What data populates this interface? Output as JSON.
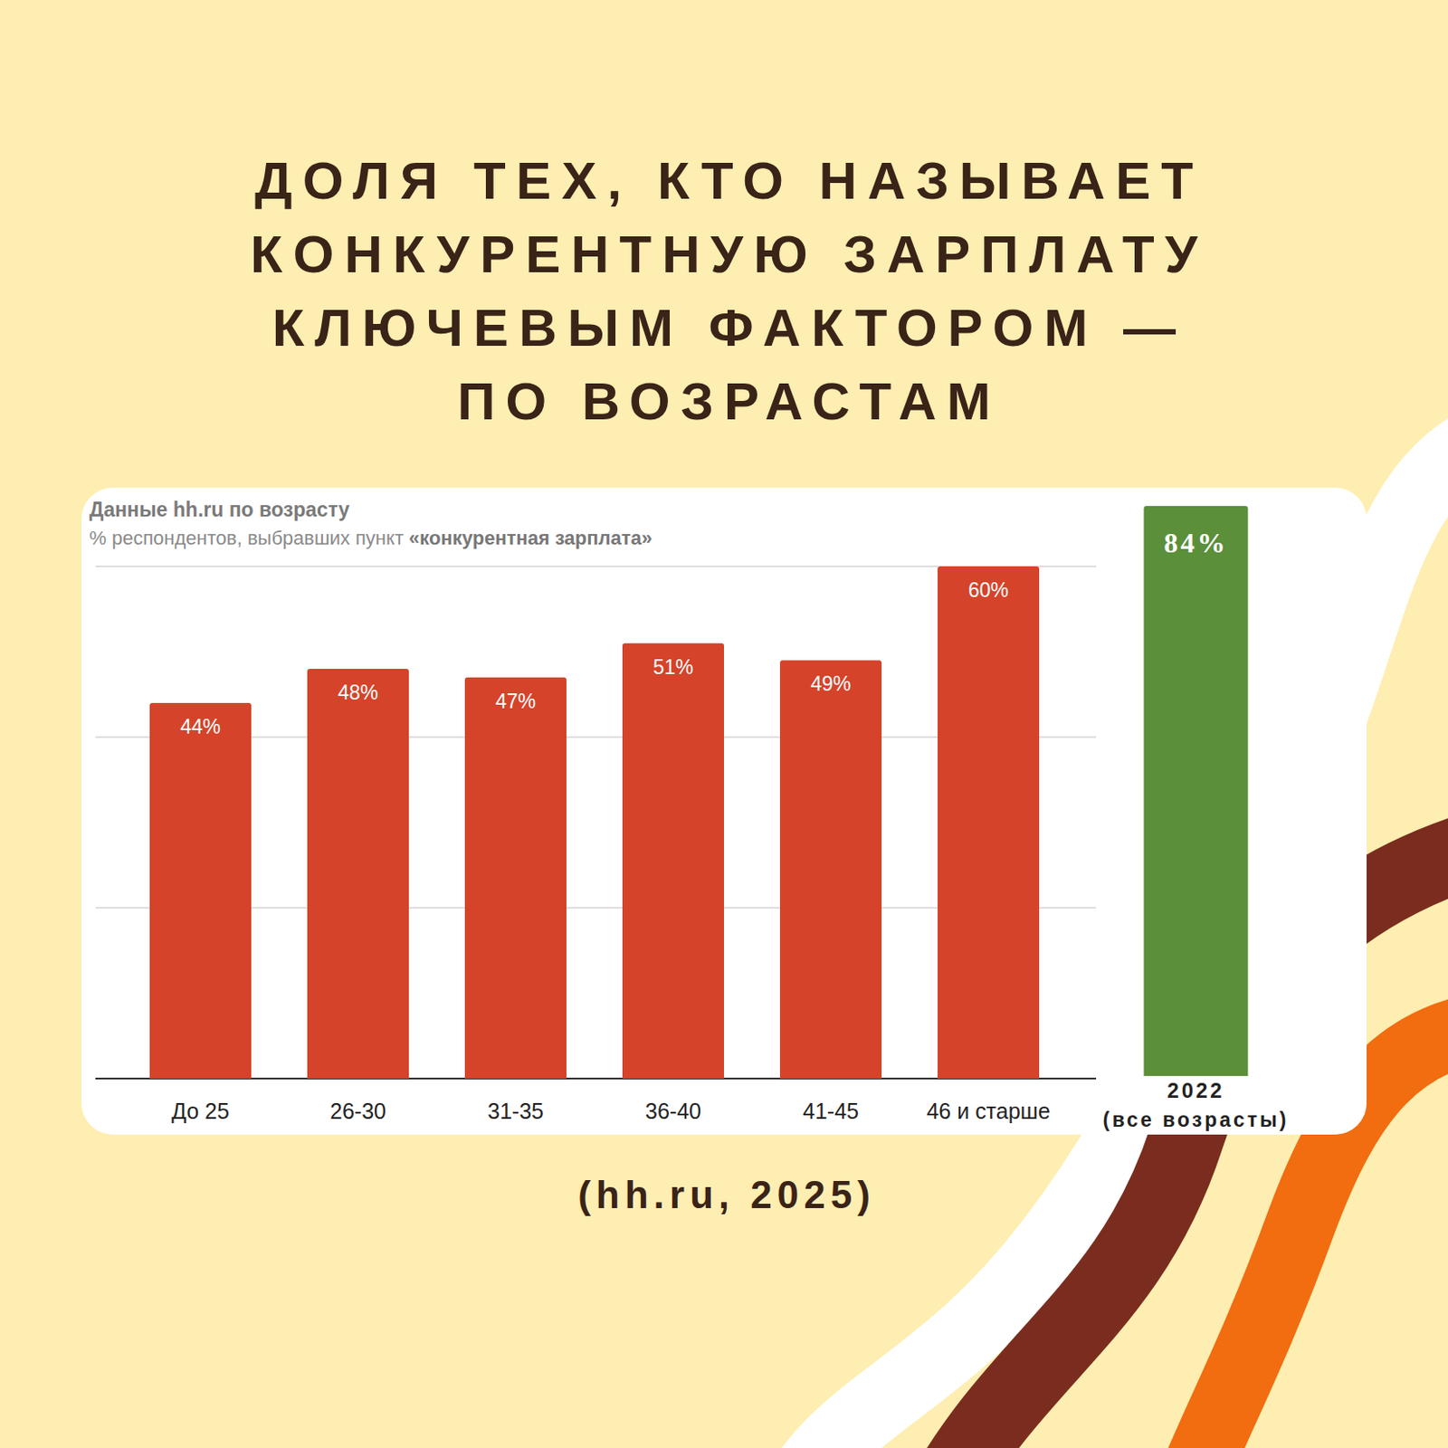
{
  "title": "ДОЛЯ ТЕХ, КТО НАЗЫВАЕТ\nКОНКУРЕНТНУЮ ЗАРПЛАТУ\nКЛЮЧЕВЫМ ФАКТОРОМ —\nПО ВОЗРАСТАМ",
  "source": "(hh.ru, 2025)",
  "chart_data": [
    {
      "type": "bar",
      "title": "Данные hh.ru по возрасту",
      "subtitle": "% респондентов, выбравших пункт «конкурентная зарплата»",
      "categories": [
        "До 25",
        "26-30",
        "31-35",
        "36-40",
        "41-45",
        "46 и старше"
      ],
      "values": [
        44,
        48,
        47,
        51,
        49,
        60
      ],
      "value_labels": [
        "44%",
        "48%",
        "47%",
        "51%",
        "49%",
        "60%"
      ],
      "color": "#d5432a",
      "ylim": [
        0,
        60
      ],
      "yticks": [
        0,
        20,
        40,
        60
      ],
      "grid": true,
      "data_labels": true,
      "tick_labels": "x"
    },
    {
      "type": "bar",
      "categories": [
        "2022"
      ],
      "xlabel": "(все возрасты)",
      "values": [
        84
      ],
      "value_labels": [
        "84%"
      ],
      "color": "#5b8f3a",
      "ylim": [
        0,
        84
      ],
      "data_labels": true,
      "tick_labels": "x"
    }
  ]
}
